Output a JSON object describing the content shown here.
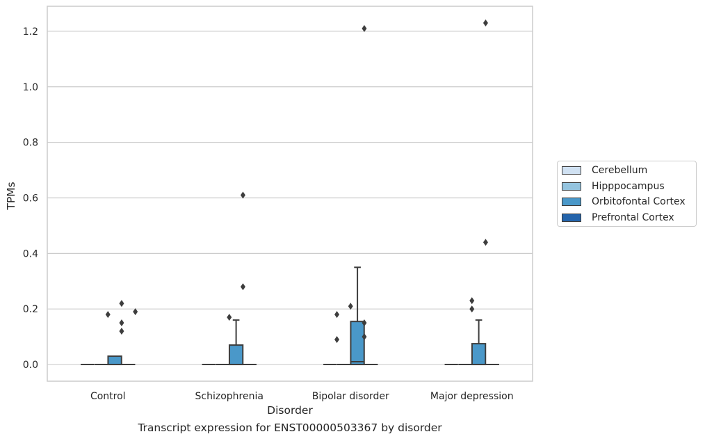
{
  "caption": "Transcript expression for ENST00000503367 by disorder",
  "chart_data": {
    "type": "box",
    "xlabel": "Disorder",
    "ylabel": "TPMs",
    "categories": [
      "Control",
      "Schizophrenia",
      "Bipolar disorder",
      "Major depression"
    ],
    "hue_order": [
      "Cerebellum",
      "Hipppocampus",
      "Orbitofontal Cortex",
      "Prefrontal Cortex"
    ],
    "hue_colors": [
      "#d0e1f2",
      "#94c4df",
      "#4a98c9",
      "#2464ab"
    ],
    "ylim": [
      -0.06,
      1.29
    ],
    "yticks": [
      0.0,
      0.2,
      0.4,
      0.6,
      0.8,
      1.0,
      1.2
    ],
    "ytick_labels": [
      "0.0",
      "0.2",
      "0.4",
      "0.6",
      "0.8",
      "1.0",
      "1.2"
    ],
    "grid": true,
    "legend_position": "right",
    "boxes": [
      {
        "category": "Control",
        "series": "Cerebellum",
        "q1": 0,
        "median": 0,
        "q3": 0,
        "whislo": 0,
        "whishi": 0,
        "fliers": []
      },
      {
        "category": "Control",
        "series": "Hipppocampus",
        "q1": 0,
        "median": 0,
        "q3": 0,
        "whislo": 0,
        "whishi": 0,
        "fliers": []
      },
      {
        "category": "Control",
        "series": "Orbitofontal Cortex",
        "q1": 0,
        "median": 0,
        "q3": 0.03,
        "whislo": 0,
        "whishi": 0.03,
        "fliers": [
          0.18,
          0.22,
          0.15,
          0.12,
          0.19
        ]
      },
      {
        "category": "Control",
        "series": "Prefrontal Cortex",
        "q1": 0,
        "median": 0,
        "q3": 0,
        "whislo": 0,
        "whishi": 0,
        "fliers": []
      },
      {
        "category": "Schizophrenia",
        "series": "Cerebellum",
        "q1": 0,
        "median": 0,
        "q3": 0,
        "whislo": 0,
        "whishi": 0,
        "fliers": []
      },
      {
        "category": "Schizophrenia",
        "series": "Hipppocampus",
        "q1": 0,
        "median": 0,
        "q3": 0,
        "whislo": 0,
        "whishi": 0,
        "fliers": []
      },
      {
        "category": "Schizophrenia",
        "series": "Orbitofontal Cortex",
        "q1": 0,
        "median": 0,
        "q3": 0.07,
        "whislo": 0,
        "whishi": 0.16,
        "fliers": [
          0.17,
          0.28,
          0.61
        ]
      },
      {
        "category": "Schizophrenia",
        "series": "Prefrontal Cortex",
        "q1": 0,
        "median": 0,
        "q3": 0,
        "whislo": 0,
        "whishi": 0,
        "fliers": []
      },
      {
        "category": "Bipolar disorder",
        "series": "Cerebellum",
        "q1": 0,
        "median": 0,
        "q3": 0,
        "whislo": 0,
        "whishi": 0,
        "fliers": []
      },
      {
        "category": "Bipolar disorder",
        "series": "Hipppocampus",
        "q1": 0,
        "median": 0,
        "q3": 0,
        "whislo": 0,
        "whishi": 0,
        "fliers": []
      },
      {
        "category": "Bipolar disorder",
        "series": "Orbitofontal Cortex",
        "q1": 0,
        "median": 0.01,
        "q3": 0.155,
        "whislo": 0,
        "whishi": 0.35,
        "fliers": [
          0.18,
          0.09,
          0.21,
          0.15,
          0.1,
          1.21
        ]
      },
      {
        "category": "Bipolar disorder",
        "series": "Prefrontal Cortex",
        "q1": 0,
        "median": 0,
        "q3": 0,
        "whislo": 0,
        "whishi": 0,
        "fliers": []
      },
      {
        "category": "Major depression",
        "series": "Cerebellum",
        "q1": 0,
        "median": 0,
        "q3": 0,
        "whislo": 0,
        "whishi": 0,
        "fliers": []
      },
      {
        "category": "Major depression",
        "series": "Hipppocampus",
        "q1": 0,
        "median": 0,
        "q3": 0,
        "whislo": 0,
        "whishi": 0,
        "fliers": []
      },
      {
        "category": "Major depression",
        "series": "Orbitofontal Cortex",
        "q1": 0,
        "median": 0,
        "q3": 0.075,
        "whislo": 0,
        "whishi": 0.16,
        "fliers": [
          0.23,
          0.2,
          0.44,
          1.23
        ]
      },
      {
        "category": "Major depression",
        "series": "Prefrontal Cortex",
        "q1": 0,
        "median": 0,
        "q3": 0,
        "whislo": 0,
        "whishi": 0,
        "fliers": []
      }
    ],
    "flier_offsets": [
      {
        "category": "Control",
        "values": [
          -0.5,
          0.5,
          0.5,
          0.5,
          1.5
        ]
      },
      {
        "category": "Schizophrenia",
        "values": [
          -0.5,
          0.5,
          0.5
        ]
      },
      {
        "category": "Bipolar disorder",
        "values": [
          -1.5,
          -1.5,
          -0.5,
          0.5,
          0.5,
          0.5
        ]
      },
      {
        "category": "Major depression",
        "values": [
          -0.5,
          -0.5,
          0.5,
          0.5
        ]
      }
    ]
  }
}
